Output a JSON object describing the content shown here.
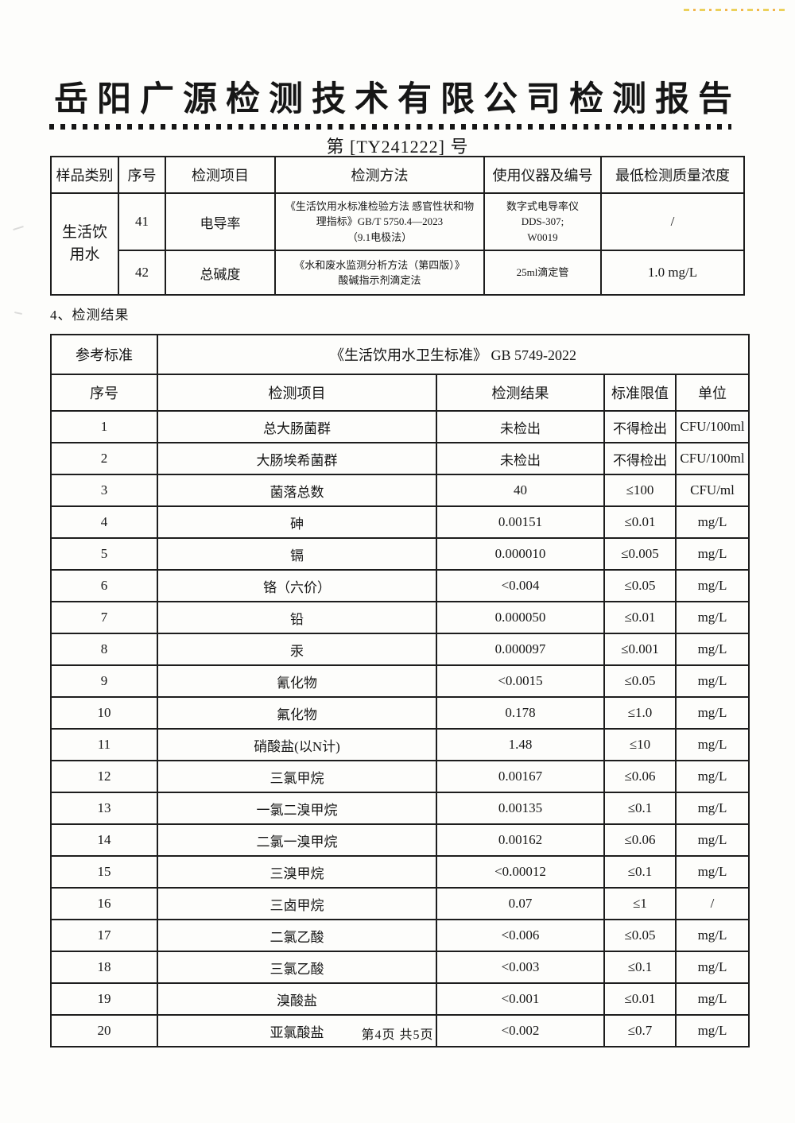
{
  "header": {
    "title": "岳阳广源检测技术有限公司检测报告",
    "report_no_prefix": "第",
    "report_no": "[TY241222]",
    "report_no_suffix": "号"
  },
  "methods_table": {
    "headers": [
      "样品类别",
      "序号",
      "检测项目",
      "检测方法",
      "使用仪器及编号",
      "最低检测质量浓度"
    ],
    "sample_category": "生活饮用水",
    "rows": [
      {
        "no": "41",
        "item": "电导率",
        "method_lines": [
          "《生活饮用水标准检验方法 感官性状和物",
          "理指标》GB/T 5750.4—2023",
          "（9.1电极法）"
        ],
        "instrument_lines": [
          "数字式电导率仪",
          "DDS-307;",
          "W0019"
        ],
        "min_conc": "/"
      },
      {
        "no": "42",
        "item": "总碱度",
        "method_lines": [
          "《水和废水监测分析方法（第四版）》",
          "酸碱指示剂滴定法"
        ],
        "instrument_lines": [
          "25ml滴定管"
        ],
        "min_conc": "1.0 mg/L"
      }
    ]
  },
  "section": {
    "label": "4、检测结果"
  },
  "results_table": {
    "ref_label": "参考标准",
    "ref_value": "《生活饮用水卫生标准》 GB 5749-2022",
    "headers": [
      "序号",
      "检测项目",
      "检测结果",
      "标准限值",
      "单位"
    ],
    "rows": [
      [
        "1",
        "总大肠菌群",
        "未检出",
        "不得检出",
        "CFU/100ml"
      ],
      [
        "2",
        "大肠埃希菌群",
        "未检出",
        "不得检出",
        "CFU/100ml"
      ],
      [
        "3",
        "菌落总数",
        "40",
        "≤100",
        "CFU/ml"
      ],
      [
        "4",
        "砷",
        "0.00151",
        "≤0.01",
        "mg/L"
      ],
      [
        "5",
        "镉",
        "0.000010",
        "≤0.005",
        "mg/L"
      ],
      [
        "6",
        "铬（六价）",
        "<0.004",
        "≤0.05",
        "mg/L"
      ],
      [
        "7",
        "铅",
        "0.000050",
        "≤0.01",
        "mg/L"
      ],
      [
        "8",
        "汞",
        "0.000097",
        "≤0.001",
        "mg/L"
      ],
      [
        "9",
        "氰化物",
        "<0.0015",
        "≤0.05",
        "mg/L"
      ],
      [
        "10",
        "氟化物",
        "0.178",
        "≤1.0",
        "mg/L"
      ],
      [
        "11",
        "硝酸盐(以N计)",
        "1.48",
        "≤10",
        "mg/L"
      ],
      [
        "12",
        "三氯甲烷",
        "0.00167",
        "≤0.06",
        "mg/L"
      ],
      [
        "13",
        "一氯二溴甲烷",
        "0.00135",
        "≤0.1",
        "mg/L"
      ],
      [
        "14",
        "二氯一溴甲烷",
        "0.00162",
        "≤0.06",
        "mg/L"
      ],
      [
        "15",
        "三溴甲烷",
        "<0.00012",
        "≤0.1",
        "mg/L"
      ],
      [
        "16",
        "三卤甲烷",
        "0.07",
        "≤1",
        "/"
      ],
      [
        "17",
        "二氯乙酸",
        "<0.006",
        "≤0.05",
        "mg/L"
      ],
      [
        "18",
        "三氯乙酸",
        "<0.003",
        "≤0.1",
        "mg/L"
      ],
      [
        "19",
        "溴酸盐",
        "<0.001",
        "≤0.01",
        "mg/L"
      ],
      [
        "20",
        "亚氯酸盐",
        "<0.002",
        "≤0.7",
        "mg/L"
      ]
    ]
  },
  "footer": {
    "page_info": "第4页 共5页"
  }
}
